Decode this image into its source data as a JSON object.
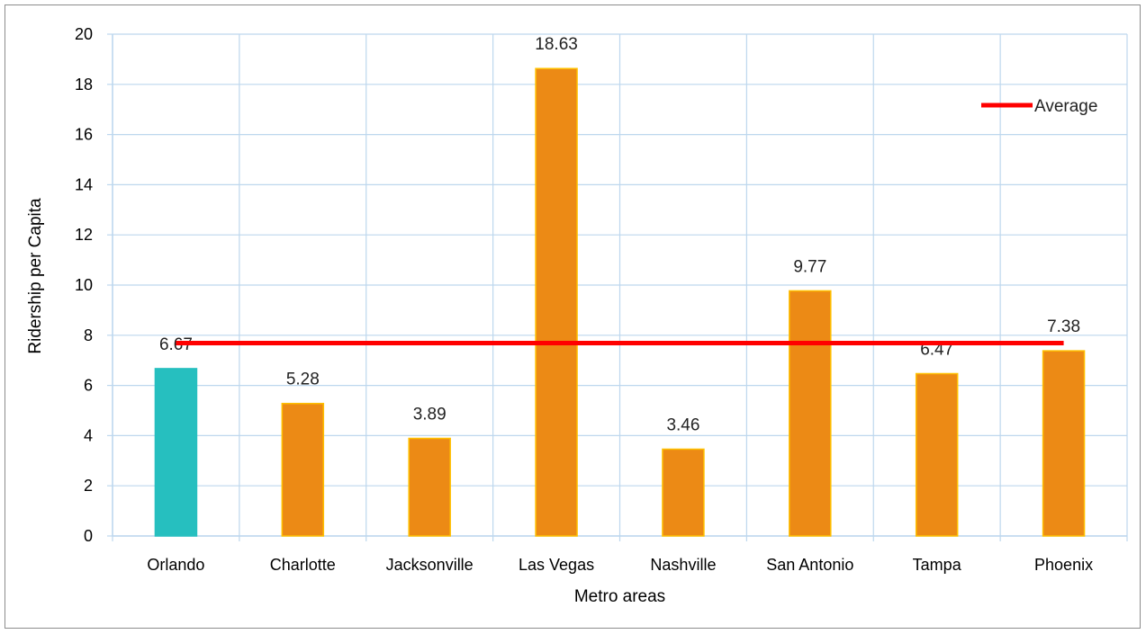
{
  "chart_data": {
    "type": "bar",
    "categories": [
      "Orlando",
      "Charlotte",
      "Jacksonville",
      "Las Vegas",
      "Nashville",
      "San Antonio",
      "Tampa",
      "Phoenix"
    ],
    "values": [
      6.67,
      5.28,
      3.89,
      18.63,
      3.46,
      9.77,
      6.47,
      7.38
    ],
    "data_labels": [
      "6.67",
      "5.28",
      "3.89",
      "18.63",
      "3.46",
      "9.77",
      "6.47",
      "7.38"
    ],
    "bar_colors": [
      "#26bfbf",
      "#ec8a15",
      "#ec8a15",
      "#ec8a15",
      "#ec8a15",
      "#ec8a15",
      "#ec8a15",
      "#ec8a15"
    ],
    "bar_edge_color": "#ffc000",
    "average": {
      "name": "Average",
      "value": 7.69,
      "color": "#ff0000"
    },
    "xlabel": "Metro areas",
    "ylabel": "Ridership per Capita",
    "ylim": [
      0,
      20
    ],
    "yticks": [
      "0",
      "2",
      "4",
      "6",
      "8",
      "10",
      "12",
      "14",
      "16",
      "18",
      "20"
    ],
    "grid": true,
    "grid_color": "#bdd7ee",
    "legend": {
      "position": "top-right",
      "entries": [
        "Average"
      ]
    }
  }
}
